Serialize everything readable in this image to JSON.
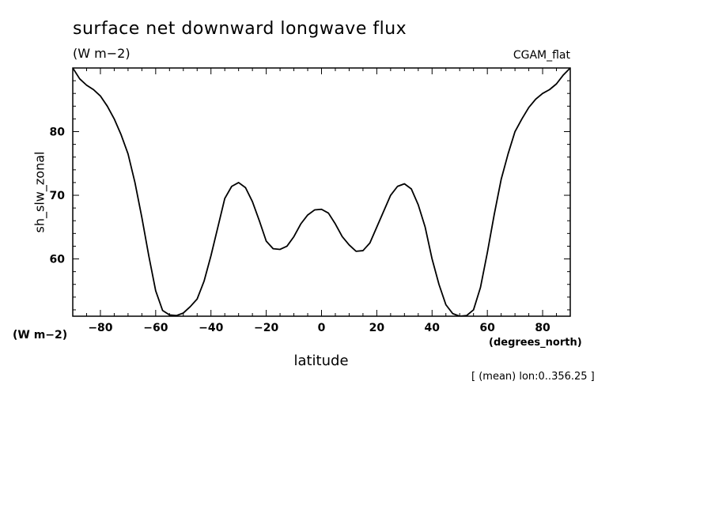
{
  "title": "surface net downward longwave flux",
  "units_top": "(W m−2)",
  "dataset_label": "CGAM_flat",
  "y_axis_units": "(W m−2)",
  "x_axis_units": "(degrees_north)",
  "annotation": "[ (mean) lon:0..356.25 ]",
  "chart_data": {
    "type": "line",
    "title": "surface net downward longwave flux",
    "xlabel": "latitude",
    "ylabel": "sh_slw_zonal",
    "xlim": [
      -90,
      90
    ],
    "ylim": [
      51,
      90
    ],
    "x_ticks": [
      -80,
      -60,
      -40,
      -20,
      0,
      20,
      40,
      60,
      80
    ],
    "y_ticks": [
      60,
      70,
      80
    ],
    "x_tick_labels": [
      "−80",
      "−60",
      "−40",
      "−20",
      "0",
      "20",
      "40",
      "60",
      "80"
    ],
    "y_tick_labels": [
      "60",
      "70",
      "80"
    ],
    "grid": false,
    "legend": "none",
    "line_color": "#000000",
    "series": [
      {
        "x": [
          -90,
          -87.5,
          -85,
          -82.5,
          -80,
          -77.5,
          -75,
          -72.5,
          -70,
          -67.5,
          -65,
          -62.5,
          -60,
          -57.5,
          -55,
          -52.5,
          -50,
          -47.5,
          -45,
          -42.5,
          -40,
          -37.5,
          -35,
          -32.5,
          -30,
          -27.5,
          -25,
          -22.5,
          -20,
          -17.5,
          -15,
          -12.5,
          -10,
          -7.5,
          -5,
          -2.5,
          0,
          2.5,
          5,
          7.5,
          10,
          12.5,
          15,
          17.5,
          20,
          22.5,
          25,
          27.5,
          30,
          32.5,
          35,
          37.5,
          40,
          42.5,
          45,
          47.5,
          50,
          52.5,
          55,
          57.5,
          60,
          62.5,
          65,
          67.5,
          70,
          72.5,
          75,
          77.5,
          80,
          82.5,
          85,
          87.5,
          90
        ],
        "values": [
          90.0,
          88.3,
          87.3,
          86.6,
          85.6,
          84.0,
          82.0,
          79.5,
          76.5,
          72.0,
          66.5,
          60.5,
          55.0,
          51.9,
          51.2,
          51.1,
          51.5,
          52.5,
          53.7,
          56.5,
          60.5,
          65.0,
          69.5,
          71.4,
          72.0,
          71.2,
          69.0,
          66.0,
          62.8,
          61.6,
          61.5,
          62.0,
          63.5,
          65.5,
          66.9,
          67.7,
          67.8,
          67.2,
          65.5,
          63.5,
          62.2,
          61.2,
          61.3,
          62.5,
          65.0,
          67.5,
          70.0,
          71.4,
          71.8,
          71.0,
          68.5,
          65.0,
          60.0,
          56.0,
          52.8,
          51.4,
          51.0,
          51.1,
          52.0,
          55.5,
          61.0,
          67.0,
          72.5,
          76.5,
          80.0,
          82.0,
          83.8,
          85.1,
          86.0,
          86.6,
          87.5,
          88.9,
          90.0
        ]
      }
    ]
  }
}
